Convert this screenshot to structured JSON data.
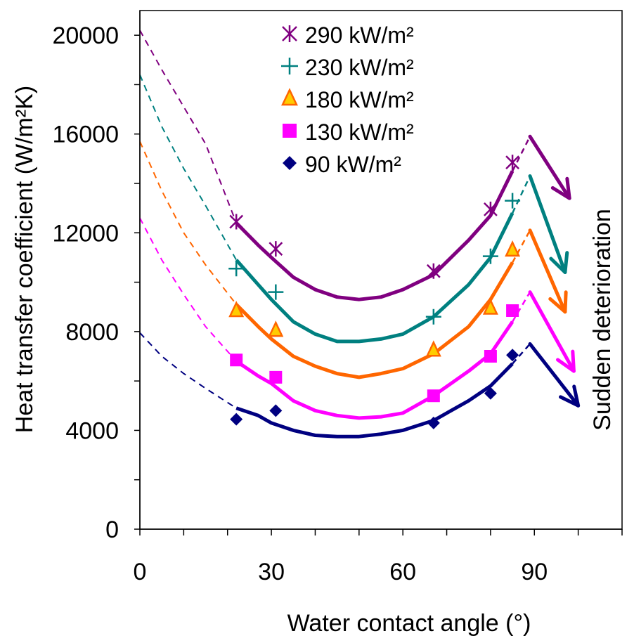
{
  "chart_data": {
    "type": "scatter",
    "xlabel": "Water contact angle (°)",
    "ylabel": "Heat transfer coefficient (W/m²K)",
    "xlim": [
      0,
      110
    ],
    "ylim": [
      0,
      21000
    ],
    "x_ticks": [
      0,
      30,
      60,
      90
    ],
    "y_ticks": [
      0,
      4000,
      8000,
      12000,
      16000,
      20000
    ],
    "x_tick_labels": [
      "0",
      "30",
      "60",
      "90"
    ],
    "y_tick_labels": [
      "0",
      "4000",
      "8000",
      "12000",
      "16000",
      "20000"
    ],
    "legend_position": "top-center",
    "annotation": "Sudden deterioration",
    "series": [
      {
        "name": "290 kW/m²",
        "marker": "asterisk",
        "color": "#800080",
        "x": [
          22,
          31,
          67,
          80,
          85
        ],
        "y": [
          12450,
          11350,
          10450,
          12950,
          14850
        ],
        "curve_x": [
          0,
          5,
          10,
          15,
          22,
          27,
          30,
          35,
          40,
          45,
          50,
          55,
          60,
          67,
          75,
          80,
          85,
          89
        ],
        "curve_y": [
          20200,
          18600,
          17100,
          15600,
          12400,
          11500,
          11000,
          10200,
          9700,
          9400,
          9300,
          9400,
          9700,
          10300,
          11700,
          12700,
          14500,
          15900
        ],
        "dashed_until_x": 22,
        "dashed_from_x": 85,
        "drop_to": [
          98,
          13400
        ]
      },
      {
        "name": "230 kW/m²",
        "marker": "plus",
        "color": "#008080",
        "x": [
          22,
          31,
          67,
          80,
          85
        ],
        "y": [
          10550,
          9600,
          8600,
          11050,
          13300
        ],
        "curve_x": [
          0,
          5,
          10,
          15,
          22,
          27,
          30,
          35,
          40,
          45,
          50,
          55,
          60,
          67,
          75,
          80,
          85,
          89
        ],
        "curve_y": [
          18400,
          16300,
          14600,
          13100,
          10900,
          9900,
          9300,
          8400,
          7900,
          7600,
          7600,
          7700,
          7900,
          8600,
          9900,
          11000,
          12800,
          14300
        ],
        "dashed_until_x": 22,
        "dashed_from_x": 85,
        "drop_to": [
          97,
          10400
        ]
      },
      {
        "name": "180 kW/m²",
        "marker": "triangle",
        "color": "#ff6600",
        "x": [
          22,
          31,
          67,
          80,
          85
        ],
        "y": [
          8850,
          8050,
          7250,
          8950,
          11300
        ],
        "curve_x": [
          0,
          5,
          10,
          15,
          22,
          27,
          30,
          35,
          40,
          45,
          50,
          55,
          60,
          67,
          75,
          80,
          85,
          89
        ],
        "curve_y": [
          15700,
          13700,
          12000,
          10700,
          9100,
          8200,
          7700,
          7000,
          6600,
          6300,
          6150,
          6300,
          6500,
          7100,
          8200,
          9300,
          10800,
          12100
        ],
        "dashed_until_x": 22,
        "dashed_from_x": 85,
        "drop_to": [
          97,
          8800
        ]
      },
      {
        "name": "130 kW/m²",
        "marker": "square",
        "color": "#ff00ff",
        "x": [
          22,
          31,
          67,
          80,
          85
        ],
        "y": [
          6850,
          6150,
          5400,
          7000,
          8850
        ],
        "curve_x": [
          0,
          5,
          10,
          15,
          22,
          27,
          30,
          35,
          40,
          45,
          50,
          55,
          60,
          67,
          75,
          80,
          85,
          89
        ],
        "curve_y": [
          12600,
          10900,
          9500,
          8200,
          6800,
          6200,
          5900,
          5200,
          4800,
          4600,
          4500,
          4550,
          4700,
          5400,
          6400,
          7100,
          8400,
          9600
        ],
        "dashed_until_x": 22,
        "dashed_from_x": 85,
        "drop_to": [
          99,
          6400
        ]
      },
      {
        "name": "90 kW/m²",
        "marker": "diamond",
        "color": "#000080",
        "x": [
          22,
          31,
          67,
          80,
          85
        ],
        "y": [
          4450,
          4800,
          4300,
          5500,
          7050
        ],
        "curve_x": [
          0,
          5,
          10,
          15,
          22,
          27,
          30,
          35,
          40,
          45,
          50,
          55,
          60,
          67,
          75,
          80,
          85,
          89
        ],
        "curve_y": [
          7950,
          7000,
          6300,
          5700,
          4900,
          4600,
          4300,
          4000,
          3800,
          3750,
          3750,
          3850,
          4000,
          4400,
          5200,
          5800,
          6700,
          7500
        ],
        "dashed_until_x": 22,
        "dashed_from_x": 85,
        "drop_to": [
          100,
          5000
        ]
      }
    ]
  }
}
